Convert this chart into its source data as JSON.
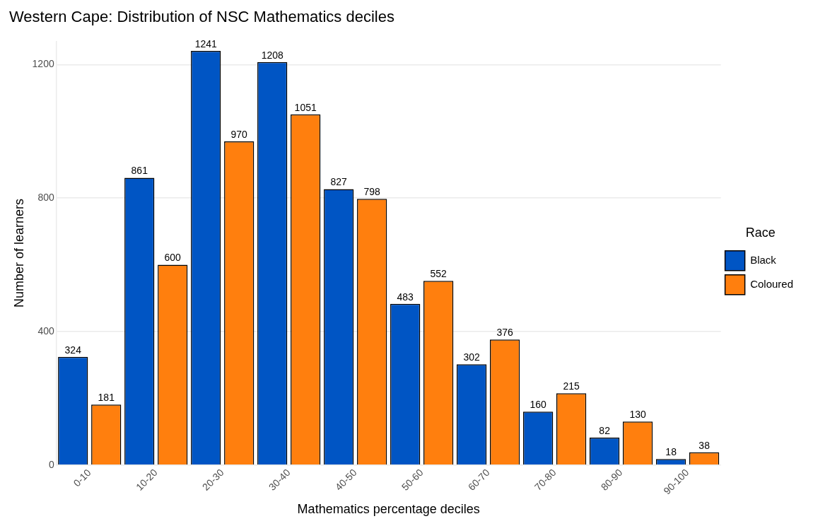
{
  "chart_data": {
    "type": "bar",
    "title": "Western Cape: Distribution of NSC Mathematics deciles",
    "xlabel": "Mathematics percentage deciles",
    "ylabel": "Number of learners",
    "legend_title": "Race",
    "categories": [
      "0-10",
      "10-20",
      "20-30",
      "30-40",
      "40-50",
      "50-60",
      "60-70",
      "70-80",
      "80-90",
      "90-100"
    ],
    "series": [
      {
        "name": "Black",
        "color": "#0055c4",
        "values": [
          324,
          861,
          1241,
          1208,
          827,
          483,
          302,
          160,
          82,
          18
        ]
      },
      {
        "name": "Coloured",
        "color": "#ff7f0e",
        "values": [
          181,
          600,
          970,
          1051,
          798,
          552,
          376,
          215,
          130,
          38
        ]
      }
    ],
    "ylim": [
      0,
      1270
    ],
    "yticks": [
      0,
      400,
      800,
      1200
    ],
    "grid": "y",
    "legend": "right",
    "data_labels": true
  }
}
